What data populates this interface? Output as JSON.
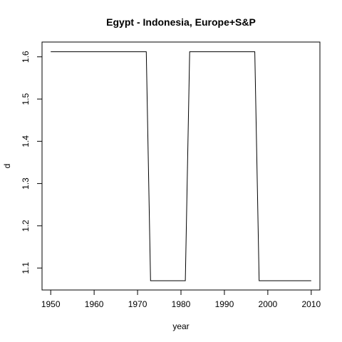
{
  "chart_data": {
    "type": "line",
    "title": "Egypt - Indonesia, Europe+S&P",
    "xlabel": "year",
    "ylabel": "d",
    "xlim": [
      1948,
      2012
    ],
    "ylim": [
      1.048,
      1.635
    ],
    "xticks": [
      1950,
      1960,
      1970,
      1980,
      1990,
      2000,
      2010
    ],
    "yticks": [
      1.1,
      1.2,
      1.3,
      1.4,
      1.5,
      1.6
    ],
    "ytick_labels": [
      "1.1",
      "1.2",
      "1.3",
      "1.4",
      "1.5",
      "1.6"
    ],
    "series": [
      {
        "name": "d",
        "x": [
          1950,
          1972,
          1973,
          1981,
          1982,
          1997,
          1998,
          2010
        ],
        "y": [
          1.612,
          1.612,
          1.07,
          1.07,
          1.612,
          1.612,
          1.07,
          1.07
        ]
      }
    ]
  }
}
